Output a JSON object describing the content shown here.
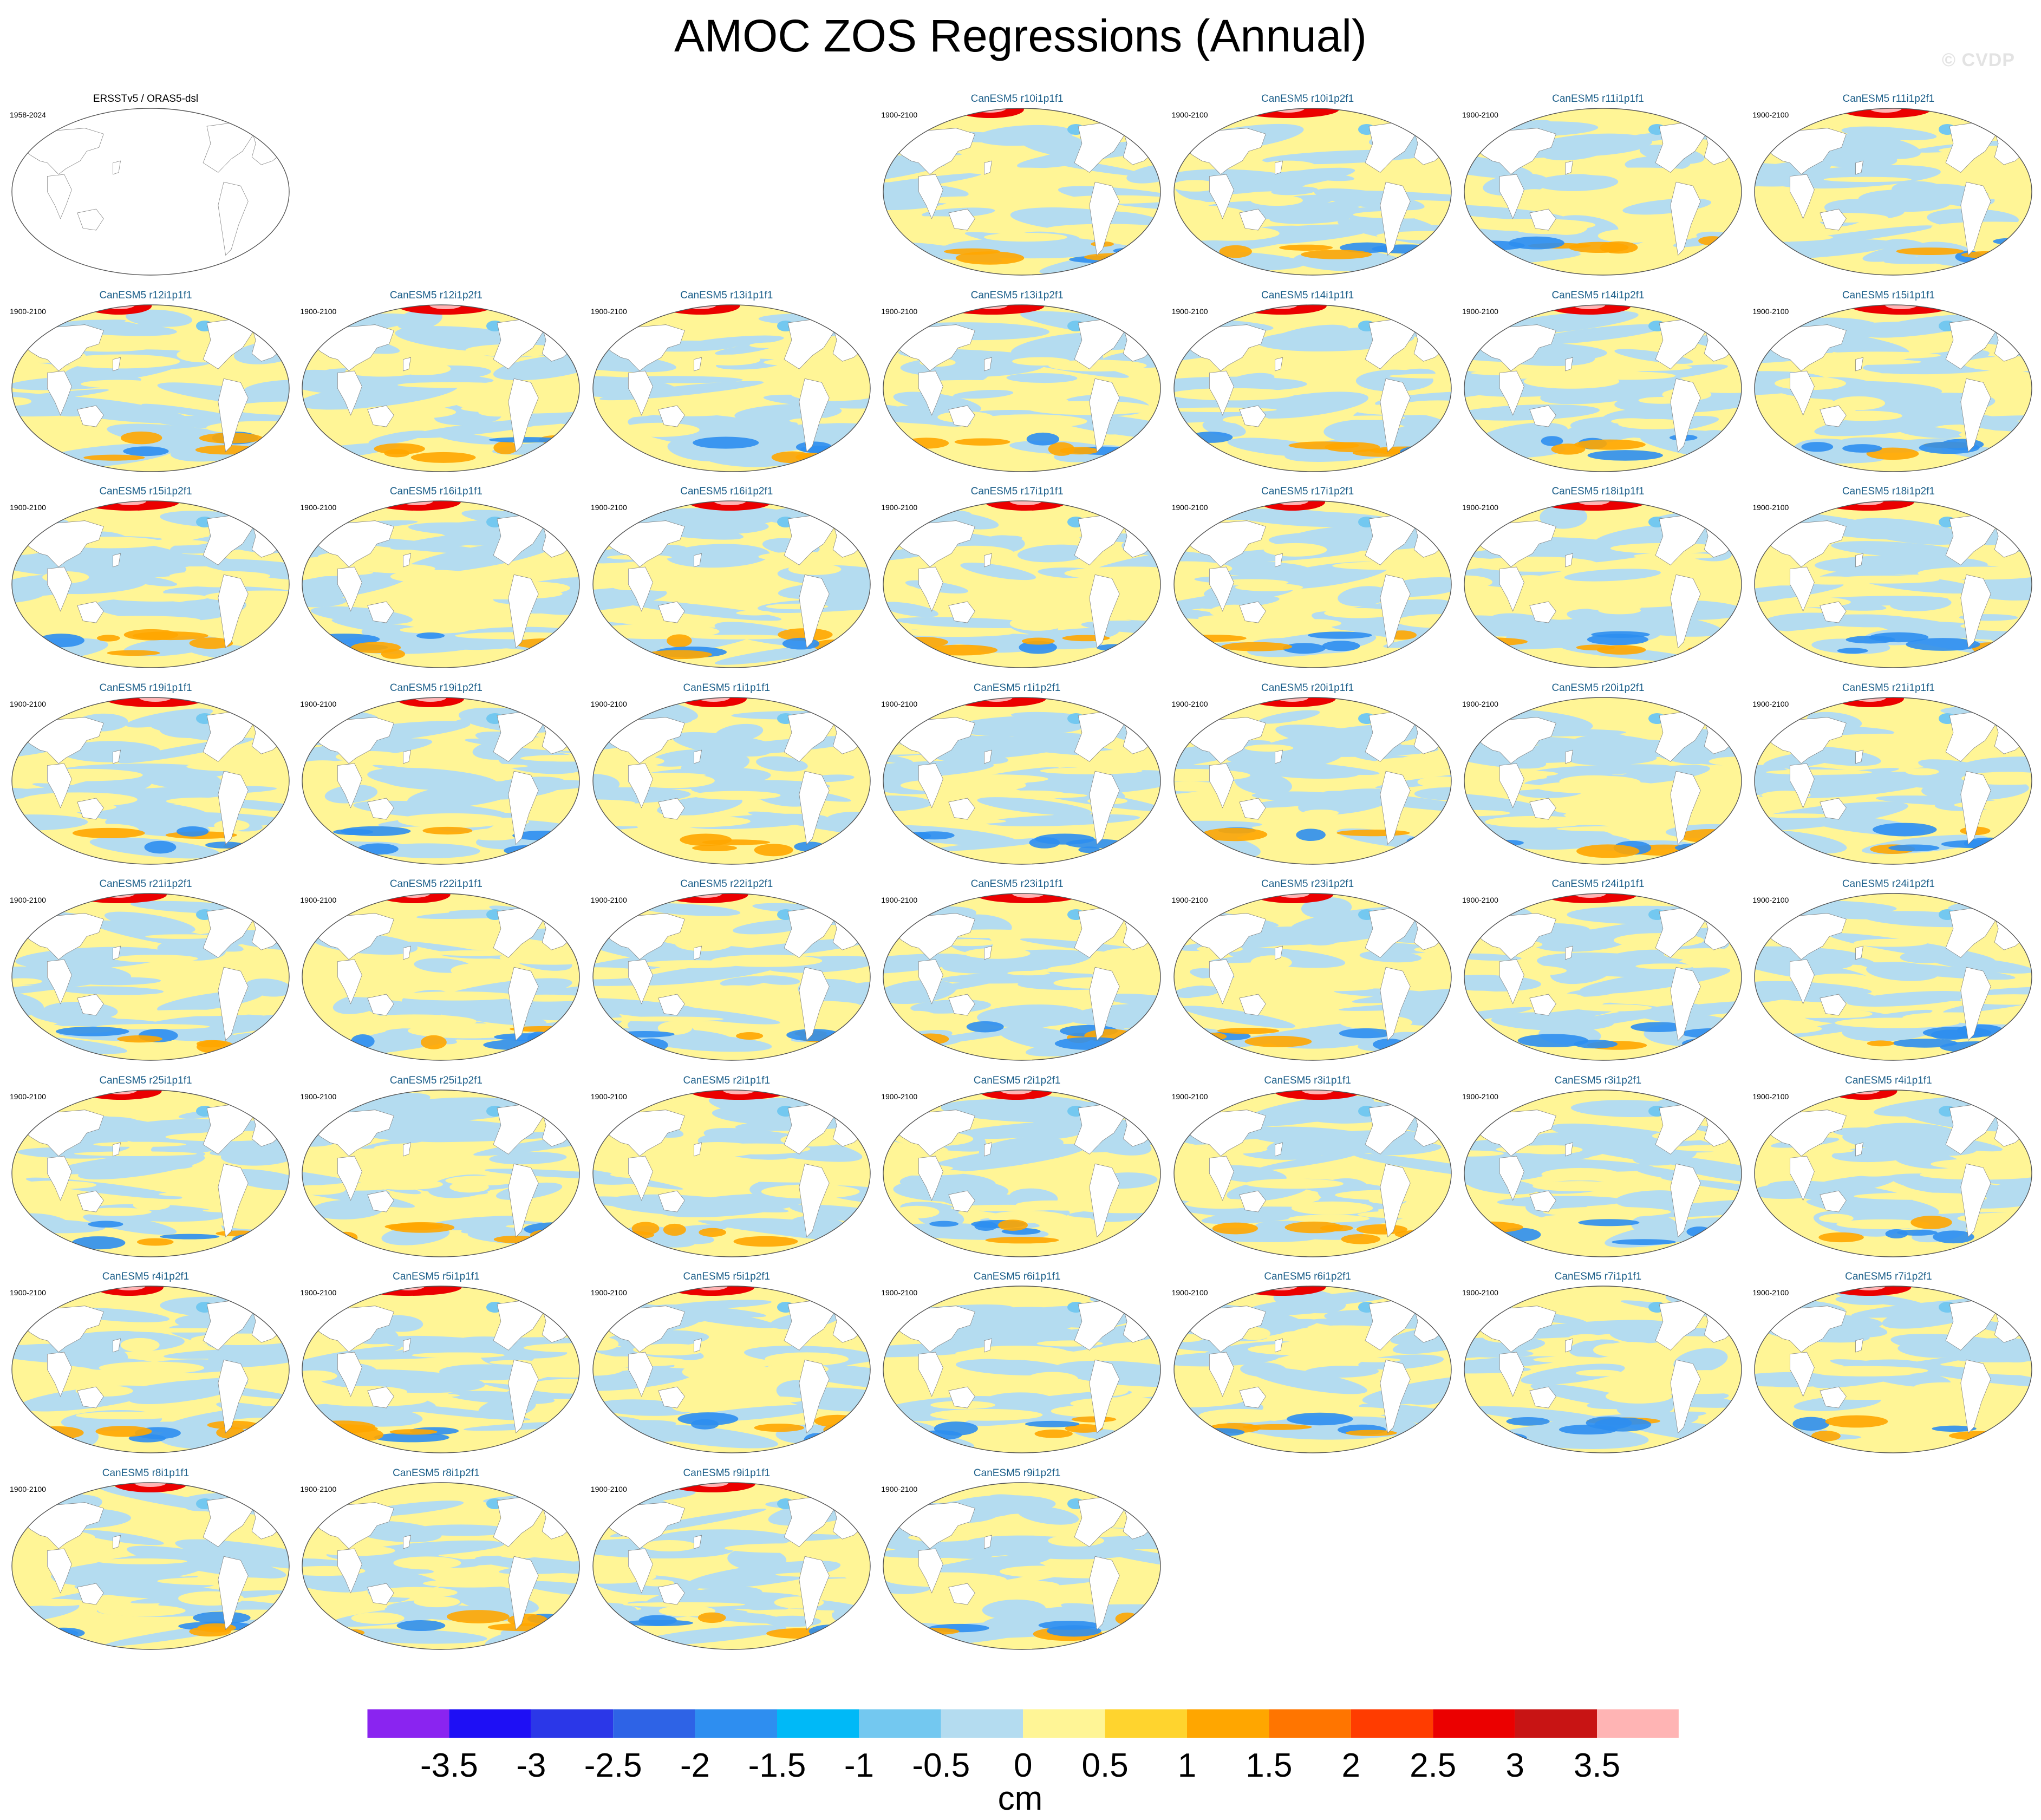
{
  "title": "AMOC ZOS Regressions (Annual)",
  "watermark": "© CVDP",
  "observation_panel": {
    "title": "ERSSTv5 / ORAS5-dsl",
    "period": "1958-2024"
  },
  "model_period": "1900-2100",
  "model_panels": [
    "CanESM5 r10i1p1f1",
    "CanESM5 r10i1p2f1",
    "CanESM5 r11i1p1f1",
    "CanESM5 r11i1p2f1",
    "CanESM5 r12i1p1f1",
    "CanESM5 r12i1p2f1",
    "CanESM5 r13i1p1f1",
    "CanESM5 r13i1p2f1",
    "CanESM5 r14i1p1f1",
    "CanESM5 r14i1p2f1",
    "CanESM5 r15i1p1f1",
    "CanESM5 r15i1p2f1",
    "CanESM5 r16i1p1f1",
    "CanESM5 r16i1p2f1",
    "CanESM5 r17i1p1f1",
    "CanESM5 r17i1p2f1",
    "CanESM5 r18i1p1f1",
    "CanESM5 r18i1p2f1",
    "CanESM5 r19i1p1f1",
    "CanESM5 r19i1p2f1",
    "CanESM5 r1i1p1f1",
    "CanESM5 r1i1p2f1",
    "CanESM5 r20i1p1f1",
    "CanESM5 r20i1p2f1",
    "CanESM5 r21i1p1f1",
    "CanESM5 r21i1p2f1",
    "CanESM5 r22i1p1f1",
    "CanESM5 r22i1p2f1",
    "CanESM5 r23i1p1f1",
    "CanESM5 r23i1p2f1",
    "CanESM5 r24i1p1f1",
    "CanESM5 r24i1p2f1",
    "CanESM5 r25i1p1f1",
    "CanESM5 r25i1p2f1",
    "CanESM5 r2i1p1f1",
    "CanESM5 r2i1p2f1",
    "CanESM5 r3i1p1f1",
    "CanESM5 r3i1p2f1",
    "CanESM5 r4i1p1f1",
    "CanESM5 r4i1p2f1",
    "CanESM5 r5i1p1f1",
    "CanESM5 r5i1p2f1",
    "CanESM5 r6i1p1f1",
    "CanESM5 r6i1p2f1",
    "CanESM5 r7i1p1f1",
    "CanESM5 r7i1p2f1",
    "CanESM5 r8i1p1f1",
    "CanESM5 r8i1p2f1",
    "CanESM5 r9i1p1f1",
    "CanESM5 r9i1p2f1"
  ],
  "colorbar": {
    "units": "cm",
    "labels": [
      "-3.5",
      "-3",
      "-2.5",
      "-2",
      "-1.5",
      "-1",
      "-0.5",
      "0",
      "0.5",
      "1",
      "1.5",
      "2",
      "2.5",
      "3",
      "3.5"
    ],
    "colors": [
      "#8a24f0",
      "#1e0ff5",
      "#2b37e8",
      "#2e63e6",
      "#2e8ef0",
      "#00b9f7",
      "#73c8f0",
      "#b4dcf0",
      "#fff596",
      "#ffd42e",
      "#ffa600",
      "#ff7500",
      "#ff3c00",
      "#eb0000",
      "#c81414",
      "#ffb4b4"
    ]
  }
}
